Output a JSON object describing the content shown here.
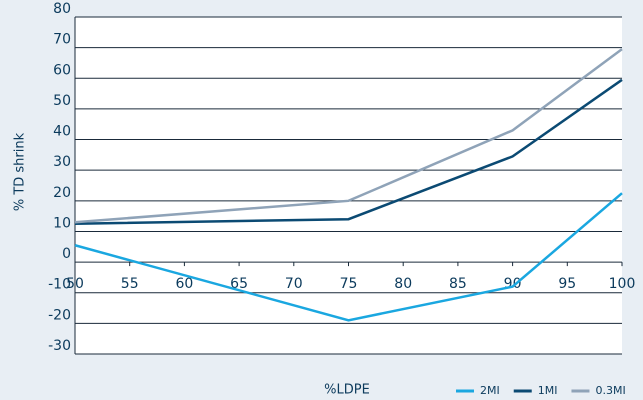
{
  "chart_data": {
    "type": "line",
    "x_label": "%LDPE",
    "y_label": "% TD shrink",
    "xlim": [
      50,
      100
    ],
    "xticks": [
      50,
      55,
      60,
      65,
      70,
      75,
      80,
      85,
      90,
      95,
      100
    ],
    "ylim": [
      -30,
      80
    ],
    "yticks": [
      -30,
      -20,
      -10,
      0,
      10,
      20,
      30,
      40,
      50,
      60,
      70,
      80
    ],
    "grid": true,
    "legend": "bottom-right",
    "series": [
      {
        "name": "2MI",
        "color": "#1aa7e0",
        "x": [
          50,
          75,
          90,
          100
        ],
        "values": [
          5.5,
          -19,
          -8,
          22.5
        ]
      },
      {
        "name": "1MI",
        "color": "#0b4a73",
        "x": [
          50,
          75,
          90,
          100
        ],
        "values": [
          12.5,
          14,
          34.5,
          59.5
        ]
      },
      {
        "name": "0.3MI",
        "color": "#8fa3b8",
        "x": [
          50,
          75,
          90,
          100
        ],
        "values": [
          13,
          20,
          43,
          69.5
        ]
      }
    ]
  }
}
